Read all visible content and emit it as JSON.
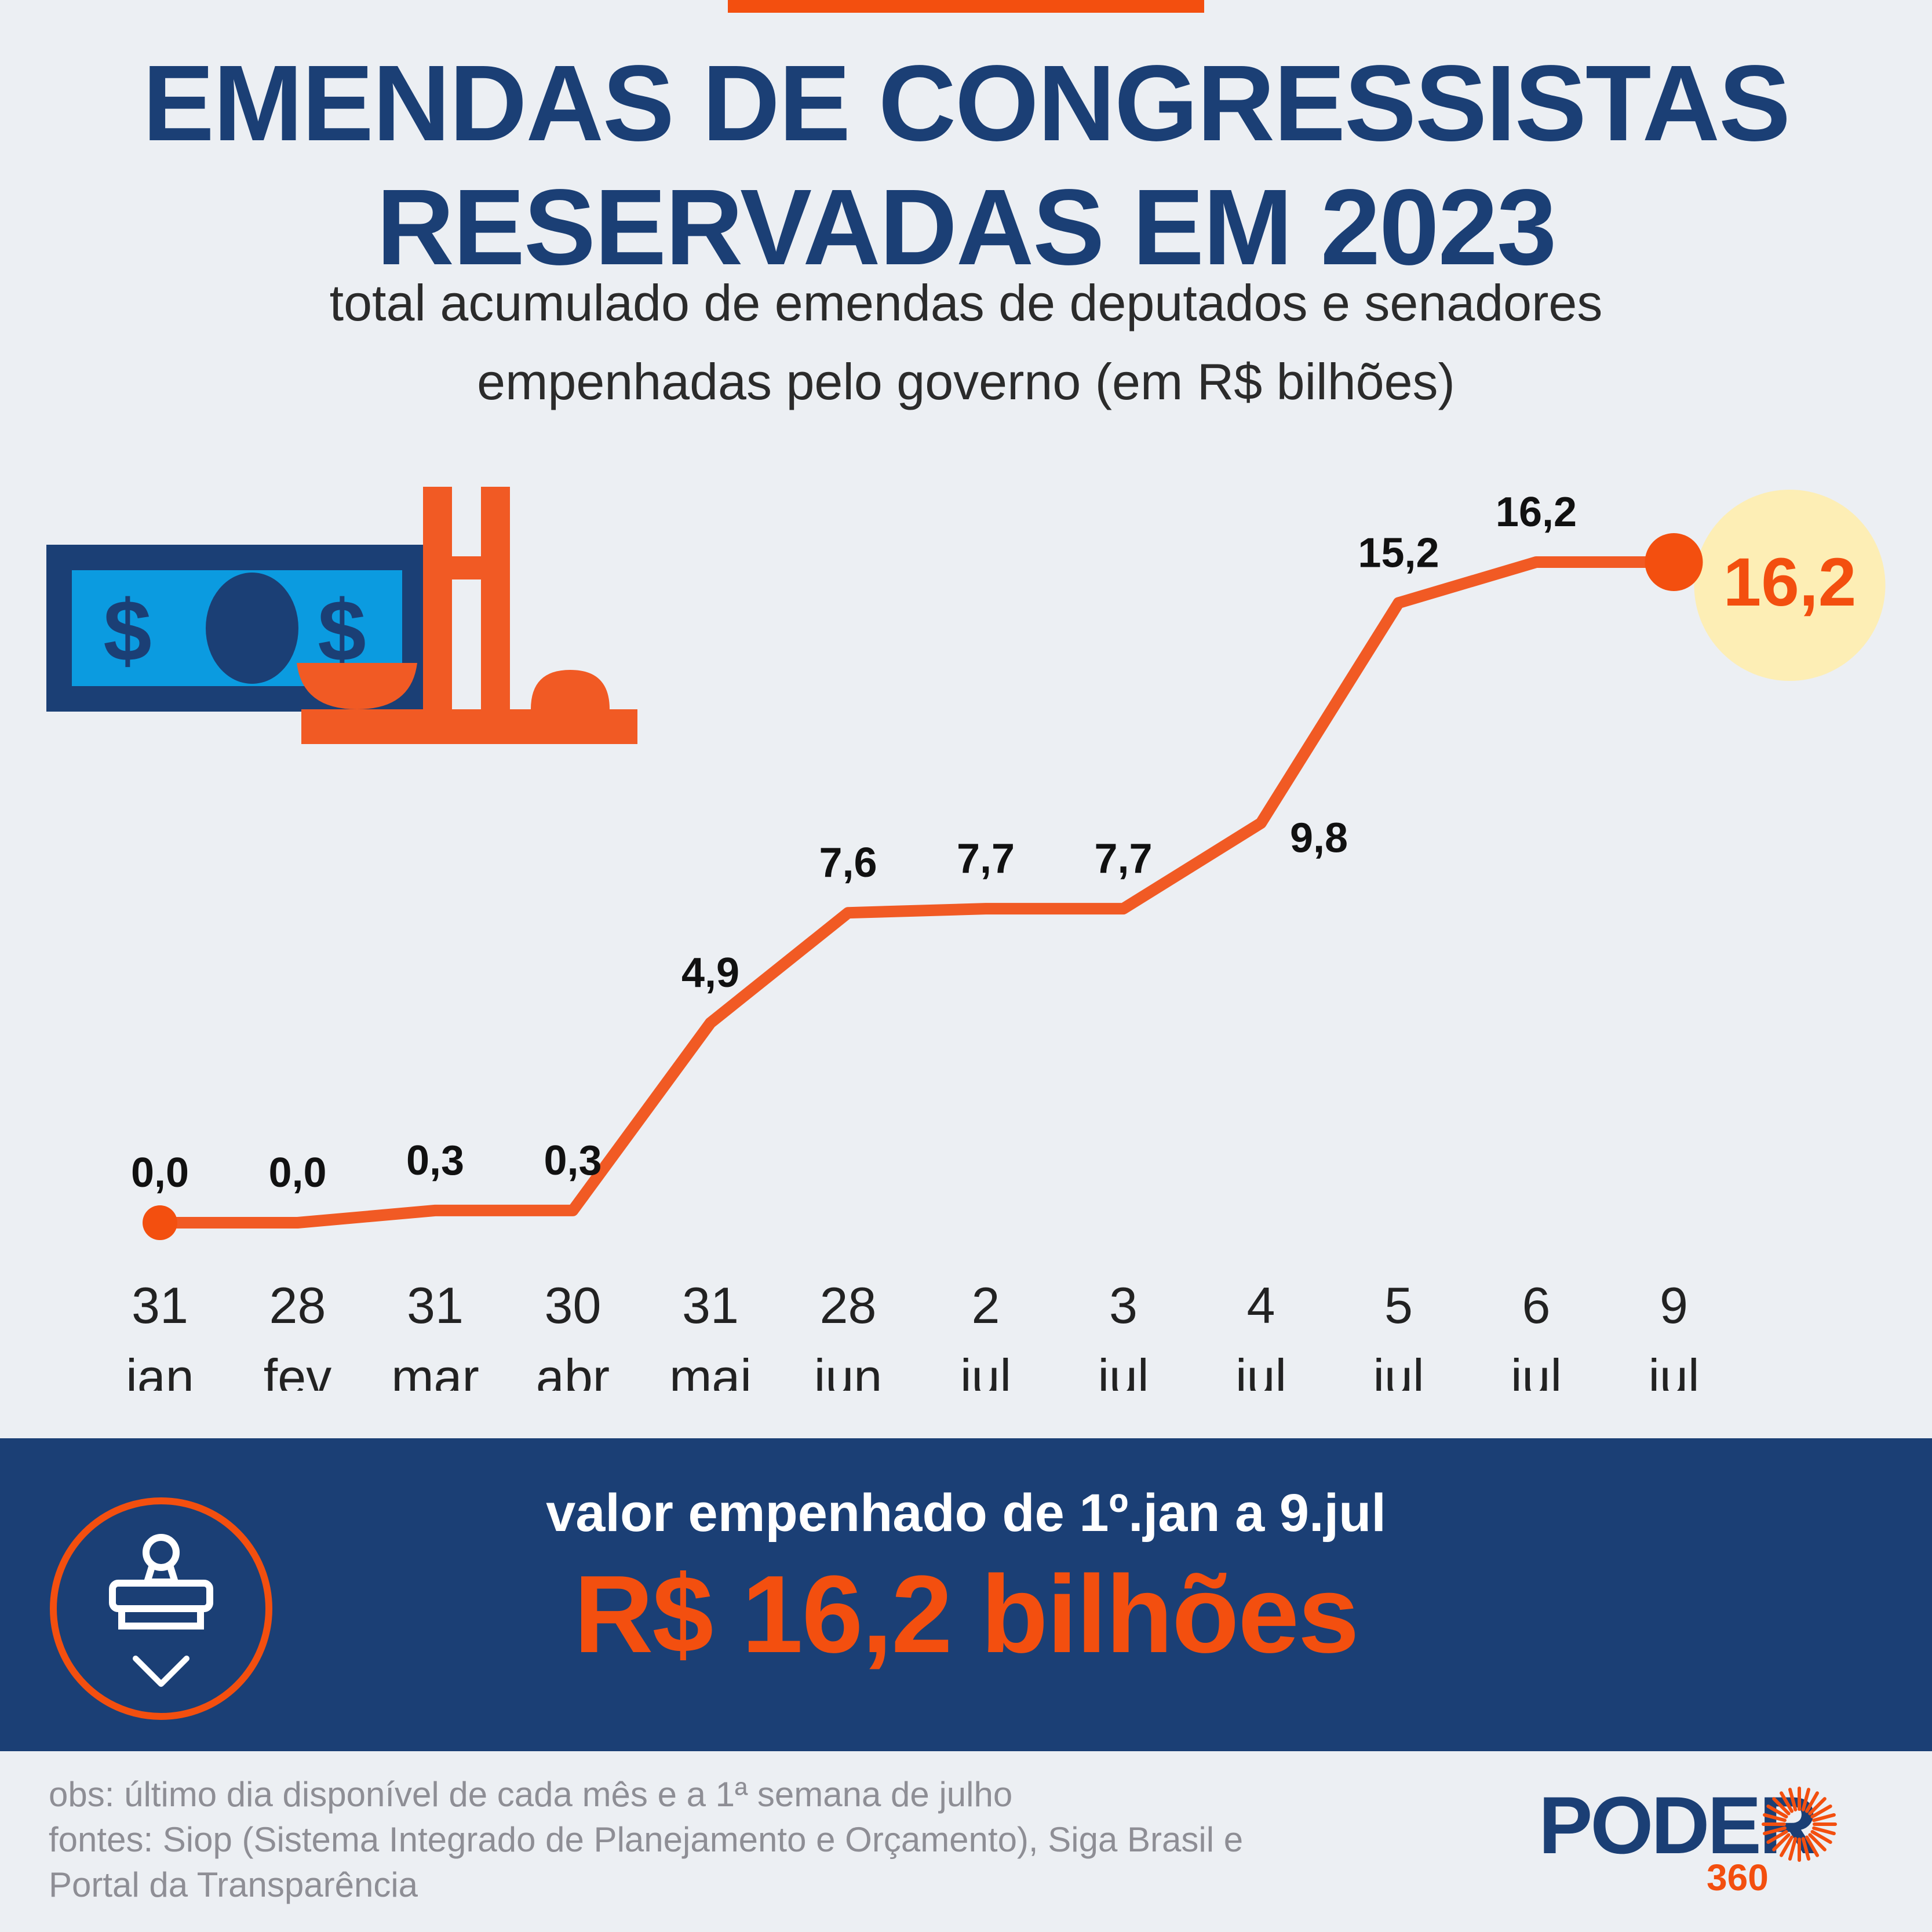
{
  "header": {
    "title_line1": "EMENDAS DE CONGRESSISTAS",
    "title_line2": "RESERVADAS EM 2023",
    "subtitle_line1": "total acumulado de emendas de deputados e senadores",
    "subtitle_line2": "empenhadas pelo governo (em R$ bilhões)"
  },
  "colors": {
    "accent": "#f34f0f",
    "line": "#f15a24",
    "navy": "#1b3f75",
    "highlight_circle": "#fdeeb5",
    "bill_light": "#0b9be0",
    "background": "#eceff3"
  },
  "chart_data": {
    "type": "line",
    "title": "EMENDAS DE CONGRESSISTAS RESERVADAS EM 2023",
    "subtitle": "total acumulado de emendas de deputados e senadores empenhadas pelo governo (em R$ bilhões)",
    "xlabel": "",
    "ylabel": "",
    "ylim": [
      0,
      16.2
    ],
    "grid": false,
    "legend": "none",
    "categories": [
      {
        "day": "31",
        "month": "jan"
      },
      {
        "day": "28",
        "month": "fev"
      },
      {
        "day": "31",
        "month": "mar"
      },
      {
        "day": "30",
        "month": "abr"
      },
      {
        "day": "31",
        "month": "mai"
      },
      {
        "day": "28",
        "month": "jun"
      },
      {
        "day": "2",
        "month": "jul"
      },
      {
        "day": "3",
        "month": "jul"
      },
      {
        "day": "4",
        "month": "jul"
      },
      {
        "day": "5",
        "month": "jul"
      },
      {
        "day": "6",
        "month": "jul"
      },
      {
        "day": "9",
        "month": "jul"
      }
    ],
    "values": [
      0.0,
      0.0,
      0.3,
      0.3,
      4.9,
      7.6,
      7.7,
      7.7,
      9.8,
      15.2,
      16.2,
      16.2
    ],
    "labels": [
      "0,0",
      "0,0",
      "0,3",
      "0,3",
      "4,9",
      "7,6",
      "7,7",
      "7,7",
      "9,8",
      "15,2",
      "16,2",
      "16,2"
    ],
    "label_position": [
      "above",
      "above",
      "above",
      "above",
      "above",
      "above",
      "above",
      "above",
      "right",
      "above",
      "above",
      "right-highlight"
    ]
  },
  "summary": {
    "label": "valor empenhado de 1º.jan a 9.jul",
    "value": "R$ 16,2 bilhões",
    "icon": "stamp-check-icon"
  },
  "footer": {
    "obs": "obs: último dia disponível de cada mês e a 1ª semana de julho",
    "sources_line1": "fontes: Siop (Sistema Integrado de Planejamento e Orçamento), Siga Brasil e",
    "sources_line2": "Portal da Transparência"
  },
  "logo": {
    "word": "PODER",
    "number": "360",
    "icon": "sun-burst-icon"
  },
  "illustration": {
    "icon": "money-congress-icon"
  }
}
